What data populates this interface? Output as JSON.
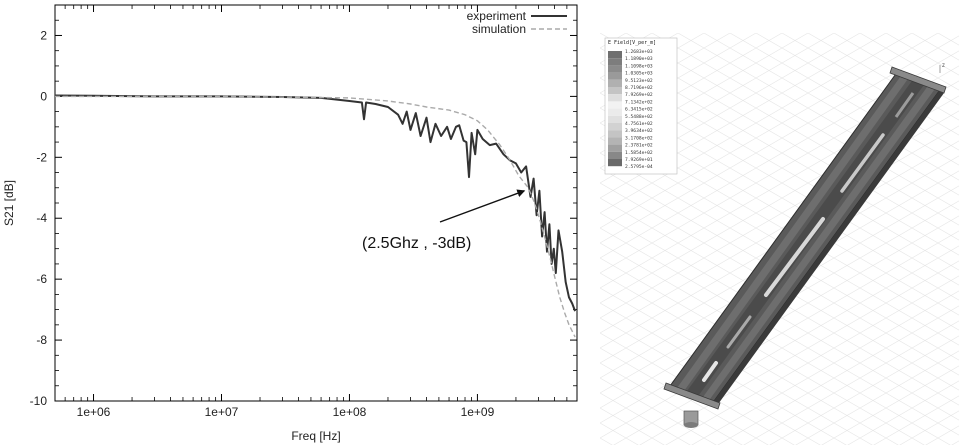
{
  "chart_data": {
    "type": "line",
    "title": "",
    "xlabel": "Freq [Hz]",
    "ylabel": "S21 [dB]",
    "x_scale": "log",
    "xlim": [
      500000,
      6000000000
    ],
    "ylim": [
      -10,
      3
    ],
    "x_ticks": [
      1000000,
      10000000,
      100000000,
      1000000000
    ],
    "x_tick_labels": [
      "1e+06",
      "1e+07",
      "1e+08",
      "1e+09"
    ],
    "y_ticks": [
      2,
      0,
      -2,
      -4,
      -6,
      -8,
      -10
    ],
    "y_tick_labels": [
      "2",
      "0",
      "-2",
      "-4",
      "-6",
      "-8",
      "-10"
    ],
    "legend_position": "top-right",
    "series": [
      {
        "name": "experiment",
        "color": "#333333",
        "style": "solid",
        "points": [
          [
            500000,
            0.03
          ],
          [
            1000000,
            0.02
          ],
          [
            3000000,
            0.0
          ],
          [
            10000000,
            0.0
          ],
          [
            30000000,
            -0.02
          ],
          [
            60000000,
            -0.05
          ],
          [
            100000000,
            -0.15
          ],
          [
            125000000,
            -0.2
          ],
          [
            130000000,
            -0.75
          ],
          [
            135000000,
            -0.2
          ],
          [
            160000000,
            -0.25
          ],
          [
            200000000,
            -0.35
          ],
          [
            240000000,
            -0.6
          ],
          [
            260000000,
            -0.9
          ],
          [
            280000000,
            -0.5
          ],
          [
            300000000,
            -1.1
          ],
          [
            330000000,
            -0.55
          ],
          [
            360000000,
            -1.3
          ],
          [
            400000000,
            -0.7
          ],
          [
            430000000,
            -1.5
          ],
          [
            470000000,
            -0.9
          ],
          [
            520000000,
            -1.3
          ],
          [
            580000000,
            -1.0
          ],
          [
            620000000,
            -1.4
          ],
          [
            680000000,
            -1.0
          ],
          [
            720000000,
            -0.95
          ],
          [
            780000000,
            -1.45
          ],
          [
            820000000,
            -1.5
          ],
          [
            860000000,
            -2.65
          ],
          [
            900000000,
            -1.2
          ],
          [
            960000000,
            -1.9
          ],
          [
            1000000000,
            -1.1
          ],
          [
            1100000000,
            -1.4
          ],
          [
            1250000000,
            -1.6
          ],
          [
            1400000000,
            -1.55
          ],
          [
            1600000000,
            -1.9
          ],
          [
            1800000000,
            -2.1
          ],
          [
            2000000000,
            -2.2
          ],
          [
            2200000000,
            -2.5
          ],
          [
            2400000000,
            -2.3
          ],
          [
            2600000000,
            -3.3
          ],
          [
            2750000000,
            -2.7
          ],
          [
            2900000000,
            -3.9
          ],
          [
            3050000000,
            -3.1
          ],
          [
            3200000000,
            -4.6
          ],
          [
            3350000000,
            -3.8
          ],
          [
            3500000000,
            -5.1
          ],
          [
            3650000000,
            -4.2
          ],
          [
            3800000000,
            -5.5
          ],
          [
            3950000000,
            -5.0
          ],
          [
            4100000000,
            -5.8
          ],
          [
            4300000000,
            -4.4
          ],
          [
            4600000000,
            -5.1
          ],
          [
            4900000000,
            -6.1
          ],
          [
            5200000000,
            -6.6
          ],
          [
            5500000000,
            -6.8
          ],
          [
            5800000000,
            -7.05
          ]
        ]
      },
      {
        "name": "simulation",
        "color": "#aaaaaa",
        "style": "dashed",
        "points": [
          [
            500000,
            0.0
          ],
          [
            10000000,
            0.0
          ],
          [
            100000000,
            -0.05
          ],
          [
            200000000,
            -0.15
          ],
          [
            300000000,
            -0.25
          ],
          [
            400000000,
            -0.35
          ],
          [
            600000000,
            -0.45
          ],
          [
            800000000,
            -0.6
          ],
          [
            1000000000,
            -0.8
          ],
          [
            1200000000,
            -1.1
          ],
          [
            1500000000,
            -1.6
          ],
          [
            1800000000,
            -2.1
          ],
          [
            2100000000,
            -2.6
          ],
          [
            2500000000,
            -3.0
          ],
          [
            2800000000,
            -3.5
          ],
          [
            3100000000,
            -4.1
          ],
          [
            3400000000,
            -4.7
          ],
          [
            3700000000,
            -5.3
          ],
          [
            4000000000,
            -5.9
          ],
          [
            4400000000,
            -6.6
          ],
          [
            4800000000,
            -7.1
          ],
          [
            5200000000,
            -7.5
          ],
          [
            5800000000,
            -7.9
          ]
        ]
      }
    ],
    "annotation": {
      "text": "(2.5Ghz , -3dB)",
      "point": [
        2500000000,
        -3.0
      ]
    }
  },
  "simulation_figure": {
    "colorbar_title": "E Field[V_per_m]",
    "colorbar_values": [
      "1.2683e+03",
      "1.1890e+03",
      "1.1098e+03",
      "1.0305e+03",
      "9.5123e+02",
      "8.7196e+02",
      "7.9269e+02",
      "7.1342e+02",
      "6.3415e+02",
      "5.5488e+02",
      "4.7561e+02",
      "3.9634e+02",
      "3.1708e+02",
      "2.3781e+02",
      "1.5854e+02",
      "7.9269e+01",
      "2.5795e-04"
    ],
    "colorbar_colors": [
      "#6f6f6f",
      "#7d7d7d",
      "#8b8b8b",
      "#9a9a9a",
      "#b0b0b0",
      "#c4c4c4",
      "#dedede",
      "#f2f2f2",
      "#ebebeb",
      "#e0e0e0",
      "#d2d2d2",
      "#c4c4c4",
      "#b4b4b4",
      "#a0a0a0",
      "#888888",
      "#6a6a6a"
    ],
    "axis_label": "z"
  }
}
